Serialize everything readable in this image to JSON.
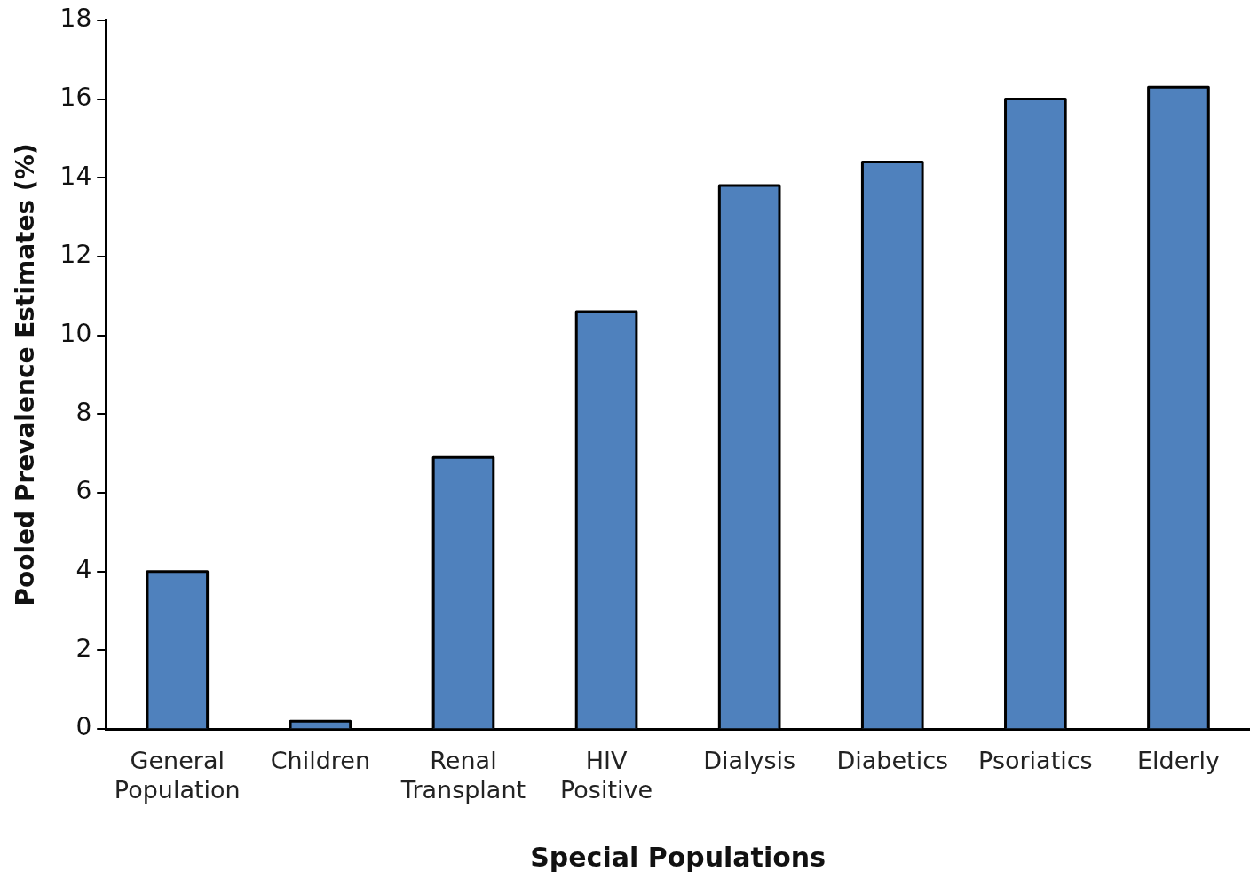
{
  "chart_data": {
    "type": "bar",
    "xlabel": "Special Populations",
    "ylabel": "Pooled Prevalence Estimates (%)",
    "categories": [
      "General Population",
      "Children",
      "Renal Transplant",
      "HIV Positive",
      "Dialysis",
      "Diabetics",
      "Psoriatics",
      "Elderly"
    ],
    "values": [
      4.0,
      0.2,
      6.9,
      10.6,
      13.8,
      14.4,
      16.0,
      16.3
    ],
    "color": "#4f81bd",
    "ylim": [
      0,
      18
    ],
    "yticks": [
      0,
      2,
      4,
      6,
      8,
      10,
      12,
      14,
      16,
      18
    ],
    "grid": false,
    "legend": false
  }
}
